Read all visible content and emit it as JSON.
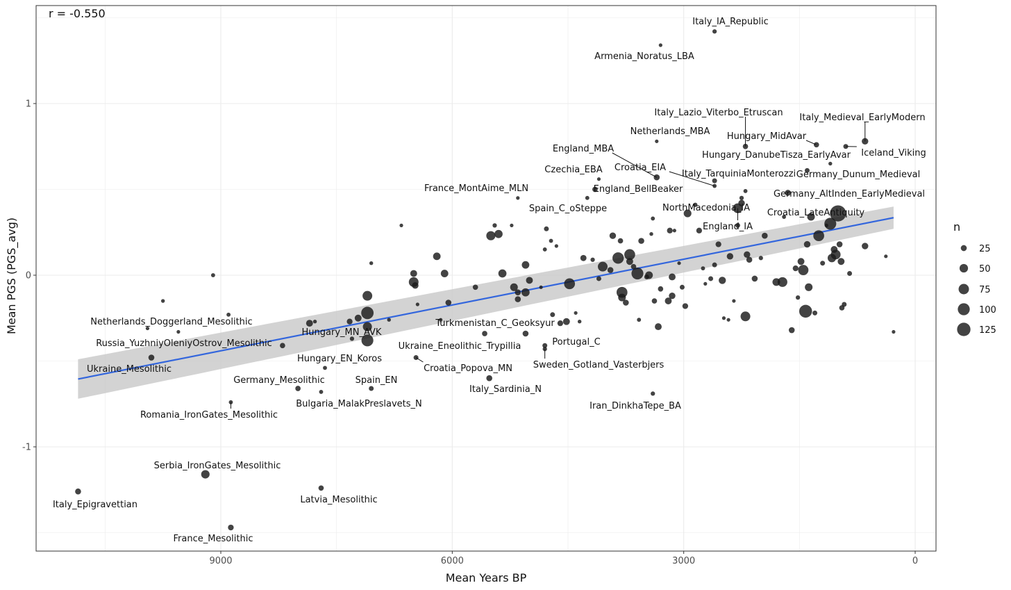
{
  "chart_data": {
    "type": "scatter",
    "annotation": "r = -0.550",
    "xlabel": "Mean Years BP",
    "ylabel": "Mean PGS (PGS_avg)",
    "xlim": [
      11000,
      -250
    ],
    "ylim": [
      -1.6,
      1.5
    ],
    "x_ticks": [
      9000,
      6000,
      3000,
      0
    ],
    "x_tick_labels": [
      "9000",
      "6000",
      "3000",
      "0"
    ],
    "y_ticks": [
      1,
      0,
      -1
    ],
    "y_tick_labels": [
      "1",
      "0",
      "-1"
    ],
    "legend": {
      "title": "n",
      "sizes": [
        25,
        50,
        75,
        100,
        125
      ],
      "labels": [
        "25",
        "50",
        "75",
        "100",
        "125"
      ]
    },
    "colors": {
      "point": "#1a1a1a",
      "trend_line": "#3366dd",
      "ribbon": "#c8c8c8",
      "grid": "#ebebeb",
      "border": "#333333"
    },
    "trend": {
      "x_start": 10850,
      "x_end": 280,
      "y_start": -0.605,
      "y_end": 0.335,
      "se_start": 0.115,
      "se_end": 0.065
    },
    "labeled_points": [
      {
        "label": "Italy_IA_Republic",
        "x": 2600,
        "y": 1.42,
        "n": 8
      },
      {
        "label": "Armenia_Noratus_LBA",
        "x": 3300,
        "y": 1.34,
        "n": 5
      },
      {
        "label": "Italy_Lazio_Viterbo_Etruscan",
        "x": 2200,
        "y": 0.75,
        "n": 12
      },
      {
        "label": "Italy_Medieval_EarlyModern",
        "x": 650,
        "y": 0.78,
        "n": 18
      },
      {
        "label": "Netherlands_MBA",
        "x": 3350,
        "y": 0.78,
        "n": 5
      },
      {
        "label": "Hungary_MidAvar",
        "x": 1280,
        "y": 0.76,
        "n": 12
      },
      {
        "label": "Iceland_Viking",
        "x": 900,
        "y": 0.75,
        "n": 10
      },
      {
        "label": "England_MBA",
        "x": 3350,
        "y": 0.57,
        "n": 15
      },
      {
        "label": "Hungary_DanubeTisza_EarlyAvar",
        "x": 1100,
        "y": 0.65,
        "n": 6
      },
      {
        "label": "Croatia_EIA",
        "x": 2600,
        "y": 0.52,
        "n": 7
      },
      {
        "label": "Czechia_EBA",
        "x": 4100,
        "y": 0.56,
        "n": 5
      },
      {
        "label": "Italy_TarquiniaMonterozzi",
        "x": 2600,
        "y": 0.55,
        "n": 10
      },
      {
        "label": "Germany_Dunum_Medieval",
        "x": 1400,
        "y": 0.61,
        "n": 10
      },
      {
        "label": "England_BellBeaker",
        "x": 4150,
        "y": 0.5,
        "n": 12
      },
      {
        "label": "France_MontAime_MLN",
        "x": 5150,
        "y": 0.45,
        "n": 5
      },
      {
        "label": "Germany_AltInden_EarlyMedieval",
        "x": 1650,
        "y": 0.48,
        "n": 15
      },
      {
        "label": "Spain_C_oSteppe",
        "x": 4250,
        "y": 0.45,
        "n": 7
      },
      {
        "label": "NorthMacedonia_IA",
        "x": 2250,
        "y": 0.42,
        "n": 18
      },
      {
        "label": "Croatia_LateAntiquity",
        "x": 1350,
        "y": 0.34,
        "n": 25
      },
      {
        "label": "England_IA",
        "x": 2300,
        "y": 0.39,
        "n": 40
      },
      {
        "label": "Netherlands_Doggerland_Mesolithic",
        "x": 9550,
        "y": -0.33,
        "n": 5
      },
      {
        "label": "Russia_YuzhniyOleniyOstrov_Mesolithic",
        "x": 8200,
        "y": -0.41,
        "n": 12
      },
      {
        "label": "Hungary_MN_AVK",
        "x": 7300,
        "y": -0.37,
        "n": 8
      },
      {
        "label": "Turkmenistan_C_Geoksyur",
        "x": 5050,
        "y": -0.34,
        "n": 15
      },
      {
        "label": "Ukraine_Mesolithic",
        "x": 9900,
        "y": -0.48,
        "n": 15
      },
      {
        "label": "Ukraine_Eneolithic_Trypillia",
        "x": 5580,
        "y": -0.34,
        "n": 12
      },
      {
        "label": "Portugal_C",
        "x": 4800,
        "y": -0.41,
        "n": 10
      },
      {
        "label": "Hungary_EN_Koros",
        "x": 7650,
        "y": -0.54,
        "n": 7
      },
      {
        "label": "Sweden_Gotland_Vasterbjers",
        "x": 4800,
        "y": -0.43,
        "n": 8
      },
      {
        "label": "Croatia_Popova_MN",
        "x": 6470,
        "y": -0.48,
        "n": 10
      },
      {
        "label": "Germany_Mesolithic",
        "x": 8000,
        "y": -0.66,
        "n": 12
      },
      {
        "label": "Spain_EN",
        "x": 7050,
        "y": -0.66,
        "n": 10
      },
      {
        "label": "Italy_Sardinia_N",
        "x": 5520,
        "y": -0.6,
        "n": 15
      },
      {
        "label": "Bulgaria_MalakPreslavets_N",
        "x": 7700,
        "y": -0.68,
        "n": 7
      },
      {
        "label": "Iran_DinkhaTepe_BA",
        "x": 3400,
        "y": -0.69,
        "n": 8
      },
      {
        "label": "Romania_IronGates_Mesolithic",
        "x": 8870,
        "y": -0.74,
        "n": 7
      },
      {
        "label": "Serbia_IronGates_Mesolithic",
        "x": 9200,
        "y": -1.16,
        "n": 30
      },
      {
        "label": "Italy_Epigravettian",
        "x": 10850,
        "y": -1.26,
        "n": 15
      },
      {
        "label": "Latvia_Mesolithic",
        "x": 7700,
        "y": -1.24,
        "n": 12
      },
      {
        "label": "France_Mesolithic",
        "x": 8870,
        "y": -1.47,
        "n": 14
      }
    ],
    "other_points": [
      {
        "x": 9100,
        "y": 0.0,
        "n": 7
      },
      {
        "x": 9750,
        "y": -0.15,
        "n": 6
      },
      {
        "x": 8900,
        "y": -0.23,
        "n": 7
      },
      {
        "x": 9950,
        "y": -0.31,
        "n": 4
      },
      {
        "x": 7850,
        "y": -0.28,
        "n": 20
      },
      {
        "x": 7780,
        "y": -0.27,
        "n": 6
      },
      {
        "x": 7330,
        "y": -0.27,
        "n": 14
      },
      {
        "x": 7220,
        "y": -0.25,
        "n": 20
      },
      {
        "x": 7100,
        "y": -0.22,
        "n": 65
      },
      {
        "x": 7100,
        "y": -0.12,
        "n": 40
      },
      {
        "x": 7100,
        "y": -0.3,
        "n": 35
      },
      {
        "x": 7100,
        "y": -0.38,
        "n": 60
      },
      {
        "x": 7050,
        "y": 0.07,
        "n": 6
      },
      {
        "x": 6820,
        "y": -0.26,
        "n": 6
      },
      {
        "x": 6660,
        "y": 0.29,
        "n": 4
      },
      {
        "x": 6500,
        "y": 0.01,
        "n": 20
      },
      {
        "x": 6500,
        "y": -0.04,
        "n": 40
      },
      {
        "x": 6480,
        "y": -0.06,
        "n": 18
      },
      {
        "x": 6450,
        "y": -0.17,
        "n": 5
      },
      {
        "x": 6200,
        "y": 0.11,
        "n": 24
      },
      {
        "x": 6100,
        "y": 0.01,
        "n": 24
      },
      {
        "x": 6150,
        "y": -0.26,
        "n": 3
      },
      {
        "x": 6050,
        "y": -0.16,
        "n": 15
      },
      {
        "x": 5700,
        "y": -0.07,
        "n": 12
      },
      {
        "x": 5500,
        "y": 0.23,
        "n": 35
      },
      {
        "x": 5400,
        "y": 0.24,
        "n": 28
      },
      {
        "x": 5450,
        "y": 0.29,
        "n": 8
      },
      {
        "x": 5230,
        "y": 0.29,
        "n": 5
      },
      {
        "x": 5150,
        "y": -0.1,
        "n": 15
      },
      {
        "x": 5350,
        "y": 0.01,
        "n": 28
      },
      {
        "x": 5200,
        "y": -0.07,
        "n": 25
      },
      {
        "x": 5150,
        "y": -0.14,
        "n": 15
      },
      {
        "x": 5050,
        "y": -0.1,
        "n": 28
      },
      {
        "x": 5000,
        "y": -0.03,
        "n": 20
      },
      {
        "x": 5050,
        "y": 0.06,
        "n": 24
      },
      {
        "x": 4850,
        "y": -0.07,
        "n": 4
      },
      {
        "x": 4780,
        "y": 0.27,
        "n": 10
      },
      {
        "x": 4720,
        "y": 0.2,
        "n": 7
      },
      {
        "x": 4800,
        "y": 0.15,
        "n": 7
      },
      {
        "x": 4650,
        "y": 0.17,
        "n": 4
      },
      {
        "x": 4700,
        "y": -0.23,
        "n": 10
      },
      {
        "x": 4600,
        "y": -0.28,
        "n": 14
      },
      {
        "x": 4520,
        "y": -0.27,
        "n": 20
      },
      {
        "x": 4480,
        "y": -0.05,
        "n": 50
      },
      {
        "x": 4400,
        "y": -0.22,
        "n": 5
      },
      {
        "x": 4350,
        "y": -0.27,
        "n": 6
      },
      {
        "x": 4300,
        "y": 0.1,
        "n": 16
      },
      {
        "x": 4180,
        "y": 0.09,
        "n": 8
      },
      {
        "x": 4100,
        "y": -0.02,
        "n": 10
      },
      {
        "x": 4050,
        "y": 0.05,
        "n": 40
      },
      {
        "x": 3950,
        "y": 0.03,
        "n": 15
      },
      {
        "x": 3920,
        "y": 0.23,
        "n": 18
      },
      {
        "x": 3850,
        "y": 0.1,
        "n": 55
      },
      {
        "x": 3820,
        "y": 0.2,
        "n": 12
      },
      {
        "x": 3800,
        "y": -0.1,
        "n": 50
      },
      {
        "x": 3800,
        "y": -0.13,
        "n": 25
      },
      {
        "x": 3750,
        "y": -0.16,
        "n": 15
      },
      {
        "x": 3700,
        "y": 0.12,
        "n": 50
      },
      {
        "x": 3700,
        "y": 0.08,
        "n": 20
      },
      {
        "x": 3650,
        "y": 0.05,
        "n": 12
      },
      {
        "x": 3600,
        "y": 0.01,
        "n": 60
      },
      {
        "x": 3580,
        "y": -0.26,
        "n": 7
      },
      {
        "x": 3550,
        "y": 0.2,
        "n": 15
      },
      {
        "x": 3480,
        "y": -0.01,
        "n": 10
      },
      {
        "x": 3450,
        "y": 0.0,
        "n": 25
      },
      {
        "x": 3420,
        "y": 0.24,
        "n": 6
      },
      {
        "x": 3400,
        "y": 0.33,
        "n": 7
      },
      {
        "x": 3380,
        "y": -0.15,
        "n": 12
      },
      {
        "x": 3330,
        "y": -0.3,
        "n": 20
      },
      {
        "x": 3300,
        "y": -0.08,
        "n": 12
      },
      {
        "x": 3200,
        "y": -0.15,
        "n": 20
      },
      {
        "x": 3180,
        "y": 0.26,
        "n": 14
      },
      {
        "x": 3150,
        "y": -0.01,
        "n": 20
      },
      {
        "x": 3150,
        "y": -0.12,
        "n": 18
      },
      {
        "x": 3120,
        "y": 0.26,
        "n": 5
      },
      {
        "x": 3060,
        "y": 0.07,
        "n": 3
      },
      {
        "x": 3020,
        "y": -0.07,
        "n": 10
      },
      {
        "x": 2980,
        "y": -0.18,
        "n": 14
      },
      {
        "x": 2950,
        "y": 0.36,
        "n": 25
      },
      {
        "x": 2850,
        "y": 0.41,
        "n": 8
      },
      {
        "x": 2800,
        "y": 0.26,
        "n": 14
      },
      {
        "x": 2750,
        "y": 0.04,
        "n": 7
      },
      {
        "x": 2720,
        "y": -0.05,
        "n": 5
      },
      {
        "x": 2650,
        "y": -0.02,
        "n": 10
      },
      {
        "x": 2600,
        "y": 0.06,
        "n": 10
      },
      {
        "x": 2550,
        "y": 0.18,
        "n": 14
      },
      {
        "x": 2500,
        "y": -0.03,
        "n": 22
      },
      {
        "x": 2480,
        "y": -0.25,
        "n": 5
      },
      {
        "x": 2420,
        "y": -0.26,
        "n": 5
      },
      {
        "x": 2400,
        "y": 0.11,
        "n": 18
      },
      {
        "x": 2350,
        "y": -0.15,
        "n": 4
      },
      {
        "x": 2300,
        "y": 0.29,
        "n": 10
      },
      {
        "x": 2250,
        "y": 0.45,
        "n": 8
      },
      {
        "x": 2200,
        "y": 0.49,
        "n": 7
      },
      {
        "x": 2200,
        "y": -0.24,
        "n": 40
      },
      {
        "x": 2180,
        "y": 0.12,
        "n": 18
      },
      {
        "x": 2150,
        "y": 0.09,
        "n": 15
      },
      {
        "x": 2080,
        "y": -0.02,
        "n": 15
      },
      {
        "x": 2000,
        "y": 0.1,
        "n": 8
      },
      {
        "x": 1950,
        "y": 0.23,
        "n": 15
      },
      {
        "x": 1800,
        "y": -0.04,
        "n": 25
      },
      {
        "x": 1720,
        "y": -0.04,
        "n": 40
      },
      {
        "x": 1700,
        "y": 0.34,
        "n": 7
      },
      {
        "x": 1600,
        "y": -0.32,
        "n": 15
      },
      {
        "x": 1550,
        "y": 0.04,
        "n": 14
      },
      {
        "x": 1520,
        "y": -0.13,
        "n": 8
      },
      {
        "x": 1480,
        "y": 0.08,
        "n": 20
      },
      {
        "x": 1450,
        "y": 0.03,
        "n": 45
      },
      {
        "x": 1420,
        "y": -0.21,
        "n": 70
      },
      {
        "x": 1400,
        "y": 0.18,
        "n": 18
      },
      {
        "x": 1380,
        "y": -0.07,
        "n": 25
      },
      {
        "x": 1300,
        "y": -0.22,
        "n": 10
      },
      {
        "x": 1250,
        "y": 0.23,
        "n": 50
      },
      {
        "x": 1200,
        "y": 0.07,
        "n": 10
      },
      {
        "x": 1150,
        "y": 0.29,
        "n": 4
      },
      {
        "x": 1100,
        "y": 0.3,
        "n": 60
      },
      {
        "x": 1080,
        "y": 0.1,
        "n": 30
      },
      {
        "x": 1050,
        "y": 0.15,
        "n": 20
      },
      {
        "x": 1030,
        "y": 0.12,
        "n": 40
      },
      {
        "x": 1000,
        "y": 0.36,
        "n": 110
      },
      {
        "x": 980,
        "y": 0.18,
        "n": 15
      },
      {
        "x": 960,
        "y": 0.08,
        "n": 20
      },
      {
        "x": 950,
        "y": -0.19,
        "n": 12
      },
      {
        "x": 920,
        "y": -0.17,
        "n": 10
      },
      {
        "x": 850,
        "y": 0.01,
        "n": 10
      },
      {
        "x": 650,
        "y": 0.17,
        "n": 18
      },
      {
        "x": 380,
        "y": 0.11,
        "n": 5
      },
      {
        "x": 280,
        "y": -0.33,
        "n": 3
      }
    ]
  }
}
